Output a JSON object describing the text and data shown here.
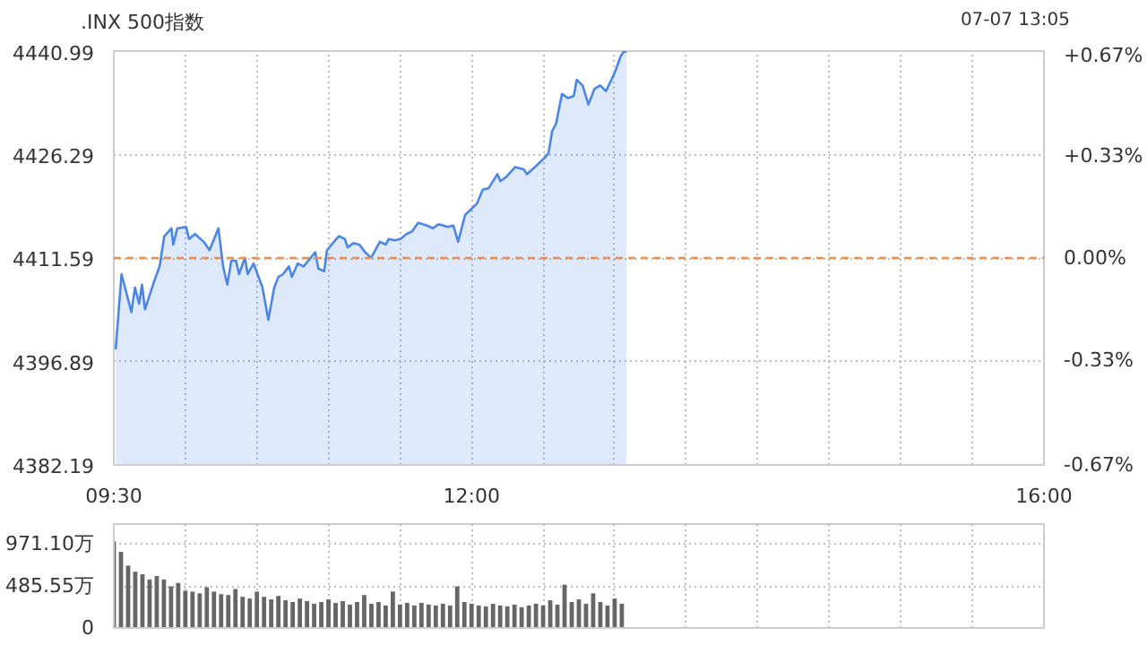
{
  "chart_data": [
    {
      "type": "area",
      "title": ".INX 500指数",
      "annotations": [
        "07-07 13:05"
      ],
      "color": "#4a86e8",
      "grid": true,
      "x": [
        9.513,
        9.554,
        9.623,
        9.648,
        9.677,
        9.697,
        9.718,
        9.779,
        9.82,
        9.853,
        9.903,
        9.915,
        9.944,
        10.005,
        10.026,
        10.067,
        10.128,
        10.169,
        10.231,
        10.264,
        10.293,
        10.321,
        10.354,
        10.375,
        10.416,
        10.436,
        10.477,
        10.539,
        10.58,
        10.621,
        10.65,
        10.683,
        10.724,
        10.744,
        10.785,
        10.826,
        10.867,
        10.908,
        10.929,
        10.97,
        10.99,
        11.072,
        11.114,
        11.134,
        11.175,
        11.216,
        11.257,
        11.298,
        11.319,
        11.36,
        11.401,
        11.421,
        11.463,
        11.504,
        11.545,
        11.586,
        11.627,
        11.689,
        11.729,
        11.77,
        11.832,
        11.873,
        11.906,
        11.955,
        12.037,
        12.078,
        12.119,
        12.181,
        12.201,
        12.242,
        12.304,
        12.365,
        12.386,
        12.448,
        12.509,
        12.538,
        12.563,
        12.591,
        12.632,
        12.673,
        12.714,
        12.735,
        12.776,
        12.817,
        12.858,
        12.899,
        12.94,
        13.002,
        13.043,
        13.063,
        13.083
      ],
      "values": [
        4398.6,
        4409.3,
        4403.9,
        4407.4,
        4405.1,
        4407.8,
        4404.3,
        4408.1,
        4410.4,
        4414.7,
        4415.8,
        4413.5,
        4415.8,
        4416.0,
        4414.3,
        4415.0,
        4413.9,
        4412.7,
        4415.8,
        4410.4,
        4407.8,
        4411.2,
        4411.2,
        4409.3,
        4411.6,
        4409.3,
        4410.8,
        4407.4,
        4402.8,
        4407.4,
        4408.9,
        4409.3,
        4410.4,
        4408.9,
        4410.8,
        4410.4,
        4411.4,
        4412.4,
        4410.1,
        4409.7,
        4412.7,
        4414.7,
        4414.3,
        4413.1,
        4413.7,
        4413.5,
        4412.4,
        4411.6,
        4412.4,
        4413.9,
        4413.5,
        4414.3,
        4414.1,
        4414.3,
        4415.0,
        4415.4,
        4416.6,
        4416.2,
        4415.8,
        4416.4,
        4416.0,
        4416.2,
        4413.9,
        4417.7,
        4419.3,
        4421.3,
        4421.5,
        4423.5,
        4422.5,
        4423.1,
        4424.5,
        4424.2,
        4423.5,
        4424.6,
        4425.8,
        4426.5,
        4429.6,
        4430.7,
        4434.9,
        4434.3,
        4434.6,
        4436.9,
        4436.1,
        4433.4,
        4435.6,
        4436.1,
        4435.3,
        4438.0,
        4440.3,
        4440.9,
        4440.9
      ],
      "xlim": [
        9.5,
        16
      ],
      "xticks": [
        {
          "value": 9.5,
          "label": "09:30"
        },
        {
          "value": 10,
          "label": null
        },
        {
          "value": 10.5,
          "label": null
        },
        {
          "value": 11,
          "label": null
        },
        {
          "value": 11.5,
          "label": null
        },
        {
          "value": 12,
          "label": "12:00"
        },
        {
          "value": 12.5,
          "label": null
        },
        {
          "value": 13,
          "label": null
        },
        {
          "value": 13.5,
          "label": null
        },
        {
          "value": 14,
          "label": null
        },
        {
          "value": 14.5,
          "label": null
        },
        {
          "value": 15,
          "label": null
        },
        {
          "value": 15.5,
          "label": null
        },
        {
          "value": 16,
          "label": "16:00"
        }
      ],
      "ylim": [
        4382.19,
        4440.99
      ],
      "yticks": [
        4382.19,
        4396.89,
        4411.59,
        4426.29,
        4440.99
      ],
      "y2lim": [
        -0.67,
        0.67
      ],
      "y2ticks": [
        {
          "value": -0.67,
          "label": "-0.67%"
        },
        {
          "value": -0.33,
          "label": "-0.33%"
        },
        {
          "value": 0,
          "label": "0.00%"
        },
        {
          "value": 0.33,
          "label": "+0.33%"
        },
        {
          "value": 0.67,
          "label": "+0.67%"
        }
      ],
      "ref_lines": [
        {
          "axis": "y",
          "value": 4411.59,
          "color": "#f08c50",
          "line_style": "dashed"
        }
      ]
    },
    {
      "type": "bar",
      "color": "#666666",
      "grid": true,
      "tick_labels": "y",
      "x": [
        9.5,
        9.55,
        9.6,
        9.65,
        9.7,
        9.75,
        9.8,
        9.85,
        9.9,
        9.95,
        10.0,
        10.05,
        10.1,
        10.15,
        10.2,
        10.25,
        10.3,
        10.35,
        10.4,
        10.45,
        10.5,
        10.55,
        10.6,
        10.65,
        10.7,
        10.75,
        10.8,
        10.85,
        10.9,
        10.95,
        11.0,
        11.05,
        11.1,
        11.15,
        11.2,
        11.25,
        11.3,
        11.35,
        11.4,
        11.45,
        11.5,
        11.55,
        11.6,
        11.65,
        11.7,
        11.75,
        11.8,
        11.85,
        11.9,
        11.95,
        12.0,
        12.05,
        12.1,
        12.15,
        12.2,
        12.25,
        12.3,
        12.35,
        12.4,
        12.45,
        12.5,
        12.55,
        12.6,
        12.65,
        12.7,
        12.75,
        12.8,
        12.85,
        12.9,
        12.95,
        13.0,
        13.05
      ],
      "values": [
        1000,
        880,
        720,
        650,
        620,
        560,
        600,
        560,
        480,
        520,
        430,
        420,
        400,
        470,
        420,
        390,
        380,
        450,
        360,
        340,
        420,
        360,
        330,
        370,
        320,
        300,
        340,
        310,
        280,
        300,
        330,
        290,
        310,
        270,
        300,
        380,
        280,
        300,
        260,
        420,
        270,
        290,
        260,
        290,
        270,
        260,
        280,
        260,
        480,
        300,
        280,
        260,
        250,
        280,
        260,
        250,
        270,
        240,
        260,
        280,
        260,
        320,
        270,
        500,
        300,
        330,
        280,
        400,
        300,
        260,
        340,
        280
      ],
      "xlim": [
        9.5,
        16
      ],
      "xticks": [
        {
          "value": 9.5,
          "label": null
        },
        {
          "value": 10,
          "label": null
        },
        {
          "value": 10.5,
          "label": null
        },
        {
          "value": 11,
          "label": null
        },
        {
          "value": 11.5,
          "label": null
        },
        {
          "value": 12,
          "label": null
        },
        {
          "value": 12.5,
          "label": null
        },
        {
          "value": 13,
          "label": null
        },
        {
          "value": 13.5,
          "label": null
        },
        {
          "value": 14,
          "label": null
        },
        {
          "value": 14.5,
          "label": null
        },
        {
          "value": 15,
          "label": null
        },
        {
          "value": 15.5,
          "label": null
        },
        {
          "value": 16,
          "label": null
        }
      ],
      "ylim": [
        0,
        1200
      ],
      "yticks": [
        0,
        {
          "value": 485.55,
          "label": "485.55万"
        },
        {
          "value": 971.1,
          "label": "971.10万"
        }
      ]
    }
  ]
}
